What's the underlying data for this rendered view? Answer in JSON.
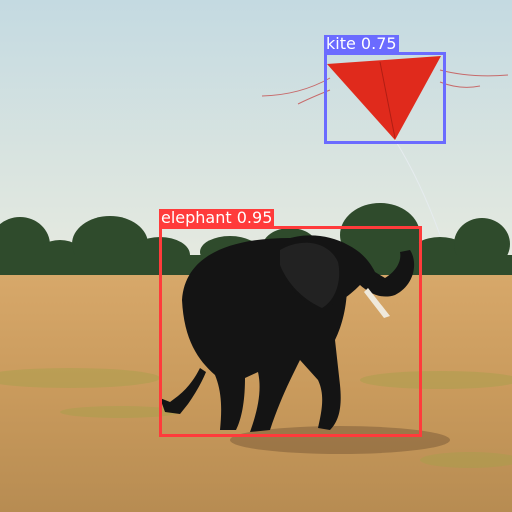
{
  "detections": [
    {
      "label": "kite",
      "score": "0.75",
      "color": "#6b6bff"
    },
    {
      "label": "elephant",
      "score": "0.95",
      "color": "#ff3b3b"
    }
  ],
  "colors": {
    "sky_top": "#c9dde3",
    "sky_bottom": "#e6ece2",
    "trees": "#2d4a2a",
    "ground": "#cfa064",
    "kite": "#e02a1c",
    "elephant": "#141414"
  }
}
